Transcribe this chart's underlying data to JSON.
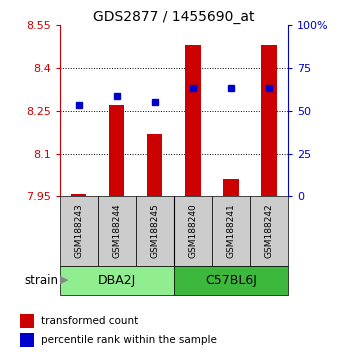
{
  "title": "GDS2877 / 1455690_at",
  "samples": [
    "GSM188243",
    "GSM188244",
    "GSM188245",
    "GSM188240",
    "GSM188241",
    "GSM188242"
  ],
  "groups": [
    {
      "name": "DBA2J",
      "start": 0,
      "end": 2,
      "color": "#90EE90"
    },
    {
      "name": "C57BL6J",
      "start": 3,
      "end": 5,
      "color": "#3CB93C"
    }
  ],
  "red_values": [
    7.96,
    8.27,
    8.17,
    8.48,
    8.01,
    8.48
  ],
  "blue_values": [
    8.27,
    8.3,
    8.28,
    8.33,
    8.33,
    8.33
  ],
  "ylim_left": [
    7.95,
    8.55
  ],
  "ylim_right": [
    0,
    100
  ],
  "yticks_left": [
    7.95,
    8.1,
    8.25,
    8.4,
    8.55
  ],
  "yticks_right": [
    0,
    25,
    50,
    75,
    100
  ],
  "ytick_labels_left": [
    "7.95",
    "8.1",
    "8.25",
    "8.4",
    "8.55"
  ],
  "ytick_labels_right": [
    "0",
    "25",
    "50",
    "75",
    "100%"
  ],
  "left_tick_color": "#CC0000",
  "right_tick_color": "#0000CC",
  "bar_color": "#CC0000",
  "dot_color": "#0000CC",
  "bar_width": 0.4,
  "strain_label": "strain",
  "legend_items": [
    "transformed count",
    "percentile rank within the sample"
  ],
  "sample_box_color": "#CCCCCC",
  "fig_width": 3.41,
  "fig_height": 3.54,
  "dpi": 100
}
